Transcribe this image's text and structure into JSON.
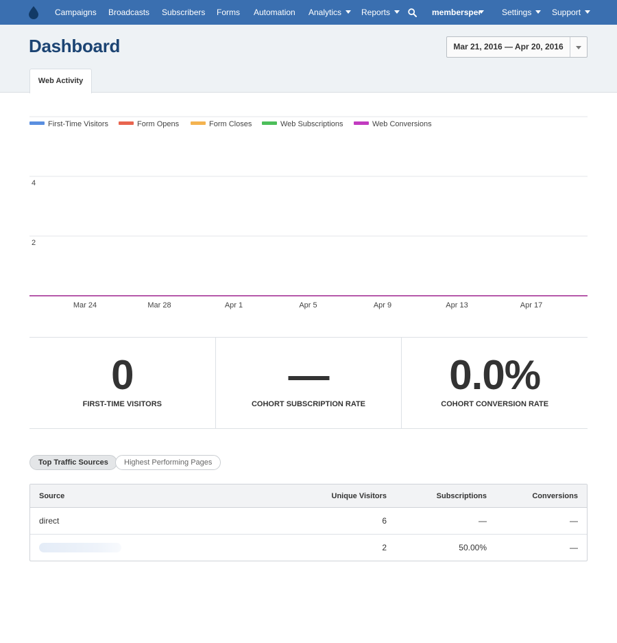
{
  "nav": {
    "items": [
      {
        "label": "Campaigns"
      },
      {
        "label": "Broadcasts"
      },
      {
        "label": "Subscribers"
      },
      {
        "label": "Forms"
      },
      {
        "label": "Automation"
      },
      {
        "label": "Analytics"
      },
      {
        "label": "Reports"
      }
    ],
    "account": "memberspee",
    "settings": "Settings",
    "support": "Support",
    "brand_color": "#3a6fb0",
    "logo_icon": "drop-icon",
    "search_icon": "search-icon"
  },
  "header": {
    "title": "Dashboard",
    "date_range": "Mar 21, 2016 — Apr 20, 2016",
    "tab": "Web Activity"
  },
  "chart_data": {
    "type": "line",
    "title": "",
    "xlabel": "",
    "ylabel": "",
    "ylim": [
      0,
      6
    ],
    "yticks": [
      2,
      4
    ],
    "x_tick_labels": [
      "Mar 24",
      "Mar 28",
      "Apr 1",
      "Apr 5",
      "Apr 9",
      "Apr 13",
      "Apr 17"
    ],
    "x": [
      "Mar 21",
      "Apr 20"
    ],
    "legend_position": "top-left",
    "grid": true,
    "series": [
      {
        "name": "First-Time Visitors",
        "color": "#5a8fe0",
        "values": [
          0,
          0
        ]
      },
      {
        "name": "Form Opens",
        "color": "#e8654f",
        "values": [
          0,
          0
        ]
      },
      {
        "name": "Form Closes",
        "color": "#f4b350",
        "values": [
          0,
          0
        ]
      },
      {
        "name": "Web Subscriptions",
        "color": "#4cbe5a",
        "values": [
          0,
          0
        ]
      },
      {
        "name": "Web Conversions",
        "color": "#c23bc0",
        "values": [
          0,
          0
        ]
      }
    ]
  },
  "stats": [
    {
      "value": "0",
      "label": "FIRST-TIME VISITORS"
    },
    {
      "value": "—",
      "label": "COHORT SUBSCRIPTION RATE"
    },
    {
      "value": "0.0%",
      "label": "COHORT CONVERSION RATE"
    }
  ],
  "segments": {
    "active": "Top Traffic Sources",
    "inactive": "Highest Performing Pages"
  },
  "table": {
    "headers": [
      "Source",
      "Unique Visitors",
      "Subscriptions",
      "Conversions"
    ],
    "rows": [
      {
        "source": "direct",
        "visitors": "6",
        "subscriptions": "—",
        "conversions": "—"
      },
      {
        "source": "",
        "visitors": "2",
        "subscriptions": "50.00%",
        "conversions": "—"
      }
    ]
  }
}
